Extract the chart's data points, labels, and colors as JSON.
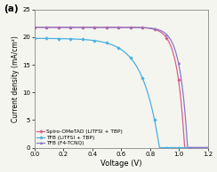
{
  "title": "(a)",
  "xlabel": "Voltage (V)",
  "ylabel": "Current density (mA/cm²)",
  "xlim": [
    0.0,
    1.2
  ],
  "ylim": [
    0,
    25
  ],
  "yticks": [
    0,
    5,
    10,
    15,
    20,
    25
  ],
  "xticks": [
    0.0,
    0.2,
    0.4,
    0.6,
    0.8,
    1.0,
    1.2
  ],
  "background_color": "#f5f5f0",
  "series": [
    {
      "label": "Spiro-OMeTAD (LiTFSI + TBP)",
      "color": "#d9608a",
      "marker": "D",
      "markersize": 1.8,
      "linewidth": 0.9,
      "Jsc": 21.8,
      "Voc": 1.04,
      "n": 2.0,
      "shape": "spiro"
    },
    {
      "label": "TFB (LiTFSI + TBP)",
      "color": "#4ab0e0",
      "marker": "D",
      "markersize": 1.8,
      "linewidth": 0.9,
      "Jsc": 19.8,
      "Voc": 0.865,
      "n": 4.5,
      "shape": "tfb_litfsi"
    },
    {
      "label": "TFB (F4-TCNQ)",
      "color": "#8878c8",
      "marker": "^",
      "markersize": 1.8,
      "linewidth": 0.9,
      "Jsc": 21.8,
      "Voc": 1.06,
      "n": 2.0,
      "shape": "tfb_f4"
    }
  ]
}
